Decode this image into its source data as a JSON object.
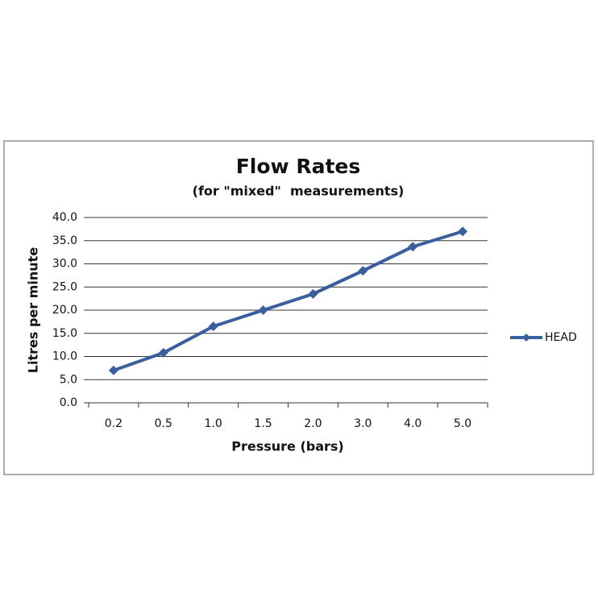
{
  "chart_data": {
    "type": "line",
    "title": "Flow Rates",
    "subtitle": "(for \"mixed\"  measurements)",
    "x_label": "Pressure (bars)",
    "y_label": "Litres per minute",
    "categories": [
      "0.2",
      "0.5",
      "1.0",
      "1.5",
      "2.0",
      "3.0",
      "4.0",
      "5.0"
    ],
    "series": [
      {
        "name": "HEAD",
        "color": "#3a5f9f",
        "values": [
          7.0,
          10.8,
          16.5,
          20.0,
          23.5,
          28.5,
          33.7,
          37.0
        ]
      }
    ],
    "ylim": [
      0,
      40
    ],
    "yticks": [
      {
        "value": 0,
        "label": "0.0"
      },
      {
        "value": 5,
        "label": "5.0"
      },
      {
        "value": 10,
        "label": "10.0"
      },
      {
        "value": 15,
        "label": "15.0"
      },
      {
        "value": 20,
        "label": "20.0"
      },
      {
        "value": 25,
        "label": "25.0"
      },
      {
        "value": 30,
        "label": "30.0"
      },
      {
        "value": 35,
        "label": "35.0"
      },
      {
        "value": 40,
        "label": "40.0"
      }
    ],
    "grid": true,
    "legend": "right"
  }
}
